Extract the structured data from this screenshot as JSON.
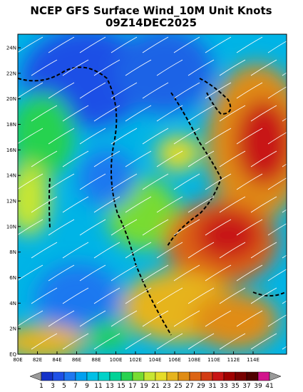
{
  "header": {
    "title": "NCEP GFS Surface Wind_10M Unit Knots",
    "subtitle": "09Z14DEC2025"
  },
  "axes": {
    "x_labels": [
      "80E",
      "82E",
      "84E",
      "86E",
      "88E",
      "100E",
      "102E",
      "104E",
      "106E",
      "108E",
      "110E",
      "112E",
      "114E"
    ],
    "y_labels": [
      "24N",
      "22N",
      "20N",
      "18N",
      "16N",
      "14N",
      "12N",
      "10N",
      "8N",
      "6N",
      "4N",
      "2N",
      "EQ"
    ]
  },
  "colorbar": {
    "labels": [
      1,
      3,
      5,
      7,
      9,
      11,
      13,
      15,
      17,
      19,
      21,
      23,
      25,
      27,
      29,
      31,
      33,
      35,
      37,
      39,
      41
    ],
    "colors": [
      "#9a9a9a",
      "#1432c8",
      "#1e50e6",
      "#1e78f0",
      "#00a0f0",
      "#00c0e6",
      "#00d2c8",
      "#00d296",
      "#28d250",
      "#78dc32",
      "#c8e632",
      "#e6dc28",
      "#e6b41e",
      "#e08c14",
      "#dc6414",
      "#d23c14",
      "#c81414",
      "#a00000",
      "#780000",
      "#500000",
      "#d2148c",
      "#9a9a9a"
    ]
  }
}
